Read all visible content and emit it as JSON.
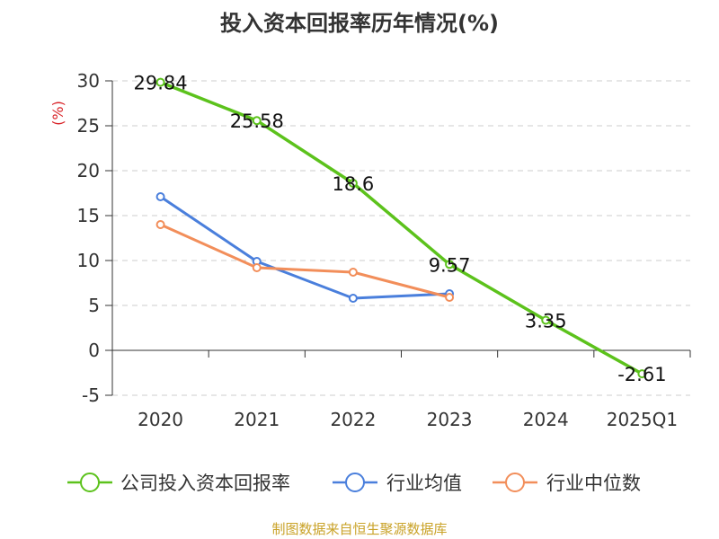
{
  "chart_data": {
    "type": "line",
    "title": "投入资本回报率历年情况(%)",
    "ylabel": "(%)",
    "categories": [
      "2020",
      "2021",
      "2022",
      "2023",
      "2024",
      "2025Q1"
    ],
    "ylim": [
      -5,
      30
    ],
    "yticks": [
      -5,
      0,
      5,
      10,
      15,
      20,
      25,
      30
    ],
    "grid": true,
    "legend_position": "bottom",
    "series": [
      {
        "name": "公司投入资本回报率",
        "color": "#5cc21c",
        "values": [
          29.84,
          25.58,
          18.6,
          9.57,
          3.35,
          -2.61
        ],
        "labels": [
          "29.84",
          "25.58",
          "18.6",
          "9.57",
          "3.35",
          "-2.61"
        ]
      },
      {
        "name": "行业均值",
        "color": "#4a7fdc",
        "values": [
          17.1,
          9.9,
          5.8,
          6.3,
          null,
          null
        ]
      },
      {
        "name": "行业中位数",
        "color": "#f28e5a",
        "values": [
          14.0,
          9.2,
          8.7,
          5.9,
          null,
          null
        ]
      }
    ]
  },
  "source": "制图数据来自恒生聚源数据库"
}
